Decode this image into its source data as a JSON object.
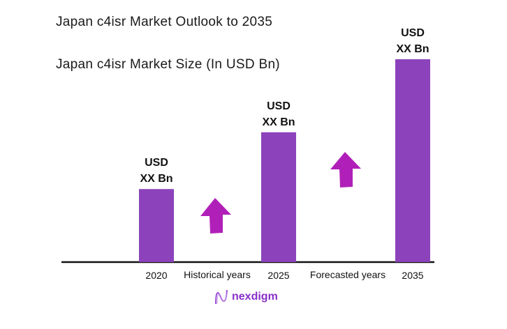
{
  "chart_data": {
    "type": "bar",
    "title": "Japan c4isr Market Outlook to 2035",
    "subtitle": "Japan c4isr Market Size (In USD Bn)",
    "categories": [
      "2020",
      "2025",
      "2035"
    ],
    "values": [
      36,
      64,
      100
    ],
    "value_labels": [
      [
        "USD",
        "XX Bn"
      ],
      [
        "USD",
        "XX Bn"
      ],
      [
        "USD",
        "XX Bn"
      ]
    ],
    "period_labels": [
      "Historical years",
      "Forecasted years"
    ],
    "xlabel": "",
    "ylabel": "",
    "ylim": [
      0,
      100
    ],
    "grid": false,
    "legend": "none",
    "colors": {
      "bar": "#8b42bb",
      "arrow": "#b020b8",
      "axis": "#111111"
    }
  },
  "brand": {
    "name": "nexdigm",
    "color": "#8a2fc9"
  }
}
